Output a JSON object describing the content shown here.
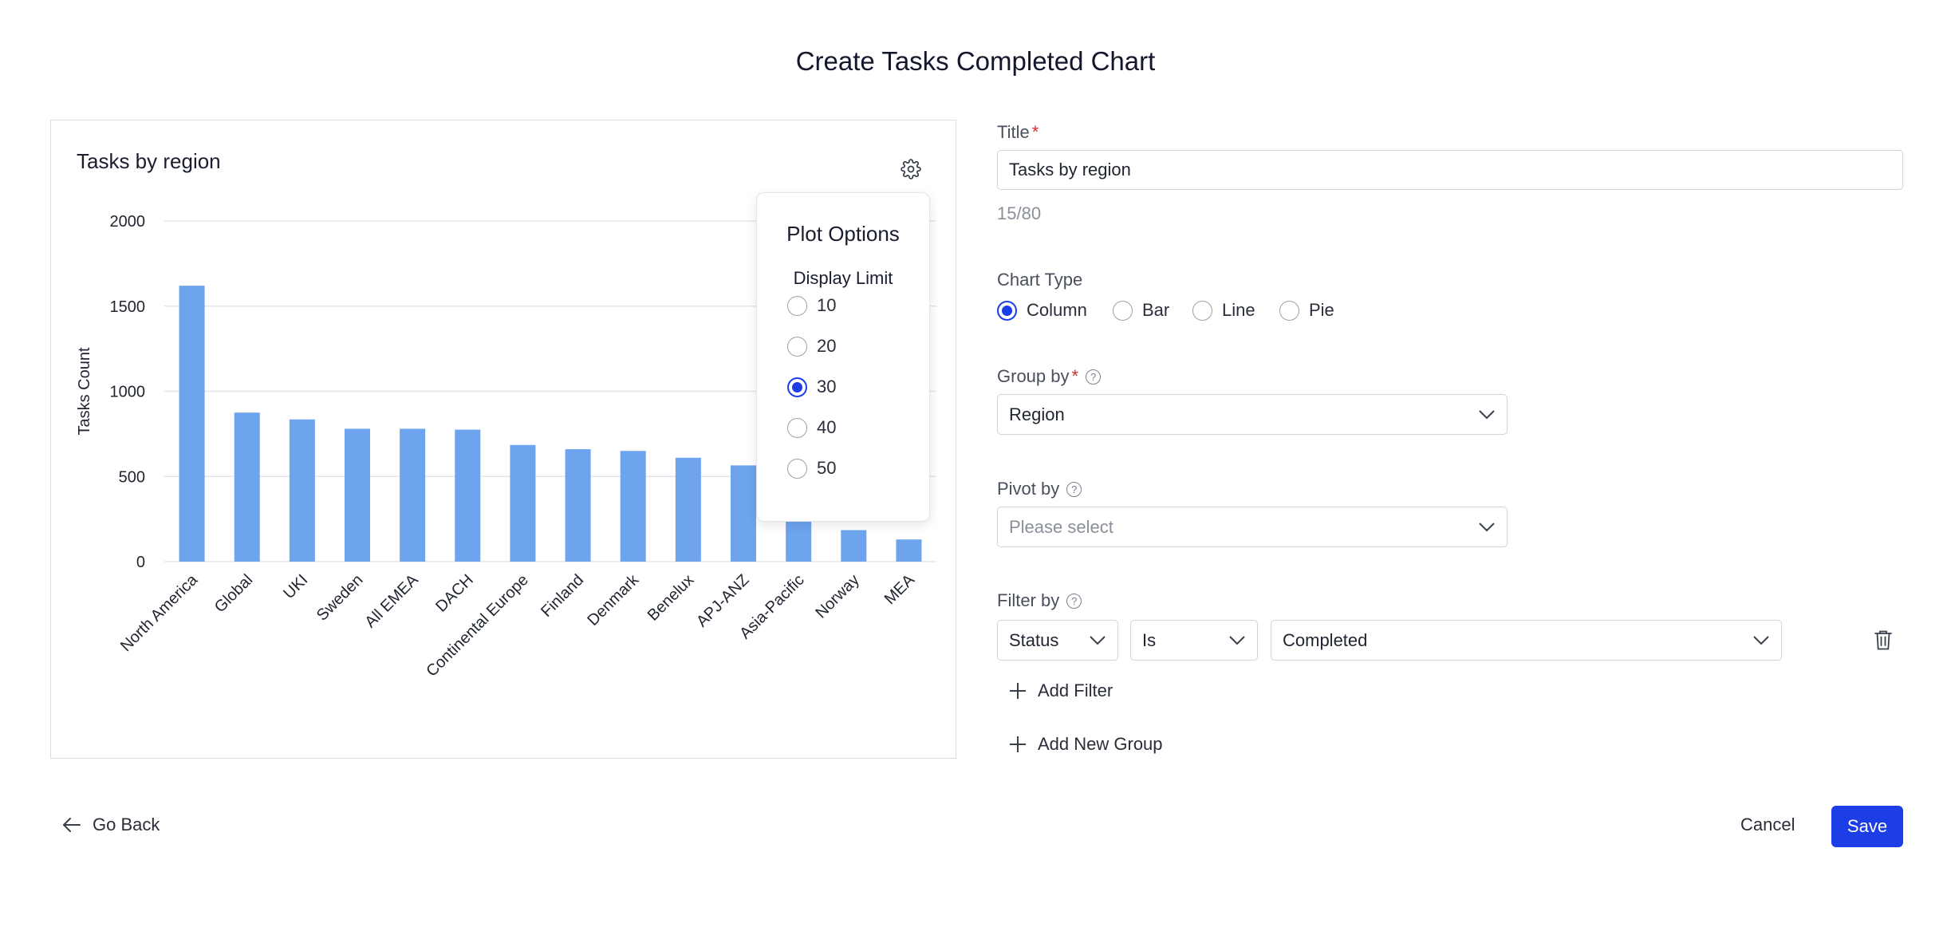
{
  "page": {
    "title": "Create Tasks Completed Chart"
  },
  "chart_panel": {
    "title": "Tasks by region"
  },
  "chart_data": {
    "type": "bar",
    "title": "Tasks by region",
    "xlabel": "",
    "ylabel": "Tasks Count",
    "ylim": [
      0,
      2000
    ],
    "yticks": [
      0,
      500,
      1000,
      1500,
      2000
    ],
    "grid": true,
    "categories": [
      "North America",
      "Global",
      "UKI",
      "Sweden",
      "All EMEA",
      "DACH",
      "Continental Europe",
      "Finland",
      "Denmark",
      "Benelux",
      "APJ-ANZ",
      "Asia-Pacific",
      "Norway",
      "MEA"
    ],
    "values": [
      1620,
      875,
      835,
      780,
      780,
      775,
      685,
      660,
      650,
      610,
      565,
      400,
      185,
      130
    ],
    "color": "#6ea4ee"
  },
  "plot_options": {
    "title": "Plot Options",
    "subtitle": "Display Limit",
    "options": [
      "10",
      "20",
      "30",
      "40",
      "50"
    ],
    "selected": "30"
  },
  "form": {
    "title_label": "Title",
    "title_value": "Tasks by region",
    "title_counter": "15/80",
    "chart_type_label": "Chart Type",
    "chart_types": [
      "Column",
      "Bar",
      "Line",
      "Pie"
    ],
    "chart_type_selected": "Column",
    "group_by_label": "Group by",
    "group_by_value": "Region",
    "pivot_by_label": "Pivot by",
    "pivot_by_placeholder": "Please select",
    "filter_by_label": "Filter by",
    "filter_field": "Status",
    "filter_operator": "Is",
    "filter_value": "Completed",
    "add_filter": "Add Filter",
    "add_new_group": "Add New Group"
  },
  "footer": {
    "go_back": "Go Back",
    "cancel": "Cancel",
    "save": "Save"
  },
  "colors": {
    "accent": "#1d3ee6",
    "bar": "#6ea4ee",
    "required": "#d02a2a"
  },
  "icons": [
    "gear-icon",
    "help-icon",
    "chevron-down-icon",
    "trash-icon",
    "plus-icon",
    "arrow-left-icon"
  ]
}
